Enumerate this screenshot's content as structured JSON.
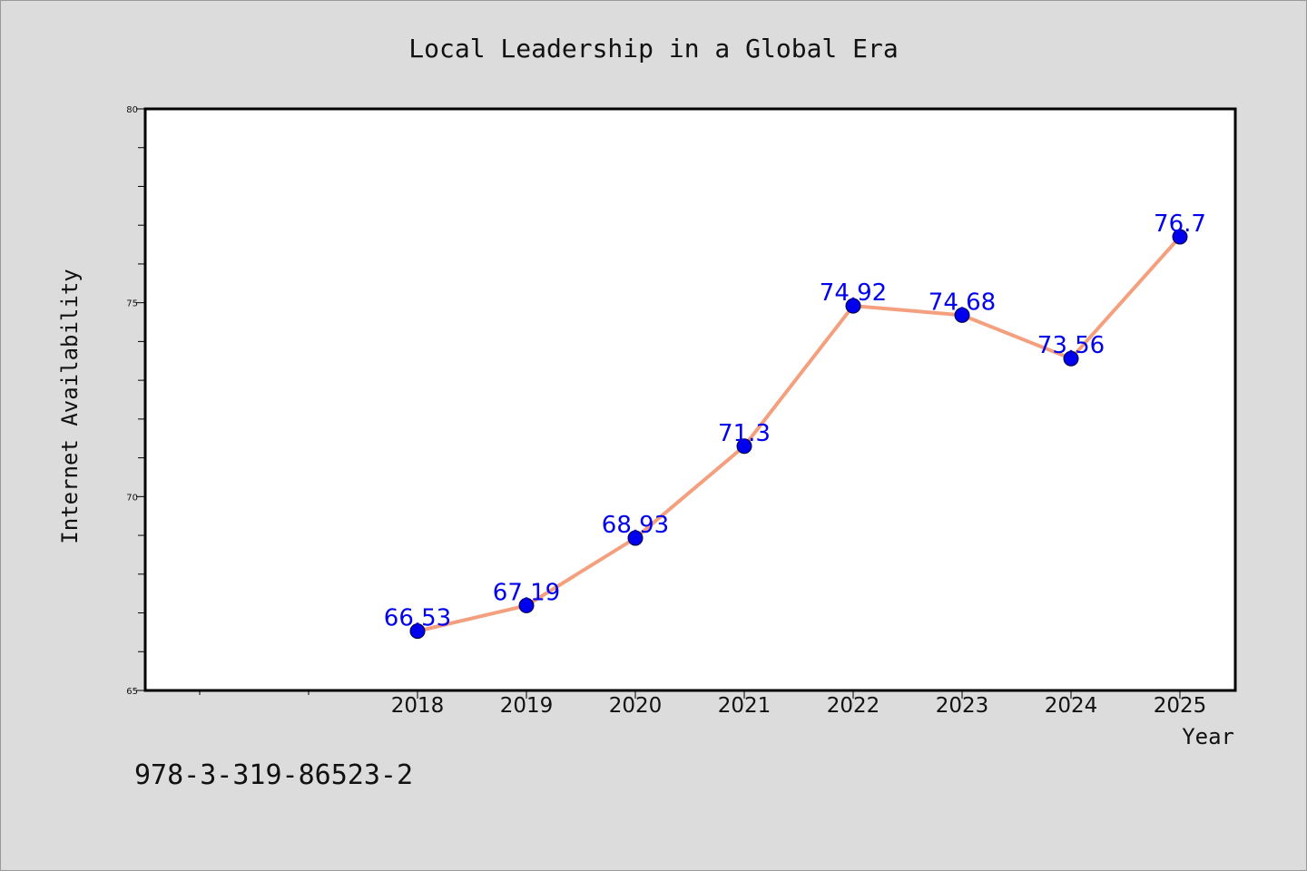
{
  "chart_data": {
    "type": "line",
    "title": "Local Leadership in a Global Era",
    "xlabel": "Year",
    "ylabel": "Internet Availability",
    "x": [
      "2018",
      "2019",
      "2020",
      "2021",
      "2022",
      "2023",
      "2024",
      "2025"
    ],
    "series": [
      {
        "values": [
          66.53,
          67.19,
          68.93,
          71.3,
          74.92,
          74.68,
          73.56,
          76.7
        ],
        "labels": [
          "66.53",
          "67.19",
          "68.93",
          "71.3",
          "74.92",
          "74.68",
          "73.56",
          "76.7"
        ],
        "line_color": "#f4a07f",
        "marker_color": "#0000ee",
        "label_color": "#0000ee"
      }
    ],
    "ylim": [
      65,
      80
    ],
    "y_ticks": [
      "65",
      "70",
      "75",
      "80"
    ],
    "grid": false,
    "legend": "none"
  },
  "footer": {
    "isbn": "978-3-319-86523-2"
  },
  "colors": {
    "background": "#dcdcdc",
    "plot_background": "#ffffff",
    "axis": "#000000"
  }
}
